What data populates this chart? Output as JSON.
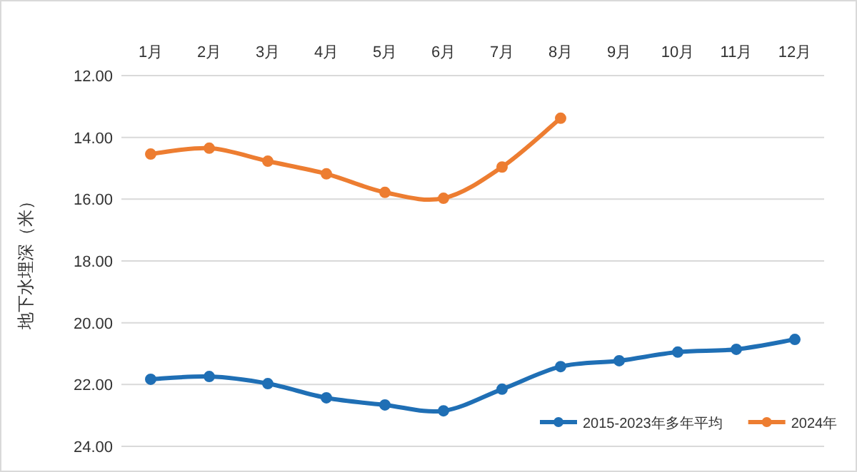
{
  "chart_data": {
    "type": "line",
    "ylabel": "地下水埋深（米）",
    "categories": [
      "1月",
      "2月",
      "3月",
      "4月",
      "5月",
      "6月",
      "7月",
      "8月",
      "9月",
      "10月",
      "11月",
      "12月"
    ],
    "ylim": [
      24,
      12
    ],
    "yticks": [
      {
        "value": 12,
        "label": "12.00"
      },
      {
        "value": 14,
        "label": "14.00"
      },
      {
        "value": 16,
        "label": "16.00"
      },
      {
        "value": 18,
        "label": "18.00"
      },
      {
        "value": 20,
        "label": "20.00"
      },
      {
        "value": 22,
        "label": "22.00"
      },
      {
        "value": 24,
        "label": "24.00"
      }
    ],
    "grid": "y",
    "legend": "bottom right",
    "marker": "circle",
    "line_style": "solid",
    "series": [
      {
        "name": "2015-2023年多年平均",
        "color": "#1f6fb5",
        "values": [
          21.83,
          21.74,
          21.97,
          22.43,
          22.66,
          22.85,
          22.15,
          21.42,
          21.23,
          20.95,
          20.86,
          20.54
        ]
      },
      {
        "name": "2024年",
        "color": "#ed7d31",
        "values": [
          14.54,
          14.35,
          14.77,
          15.18,
          15.78,
          15.97,
          14.96,
          13.38,
          null,
          null,
          null,
          null
        ]
      }
    ]
  }
}
